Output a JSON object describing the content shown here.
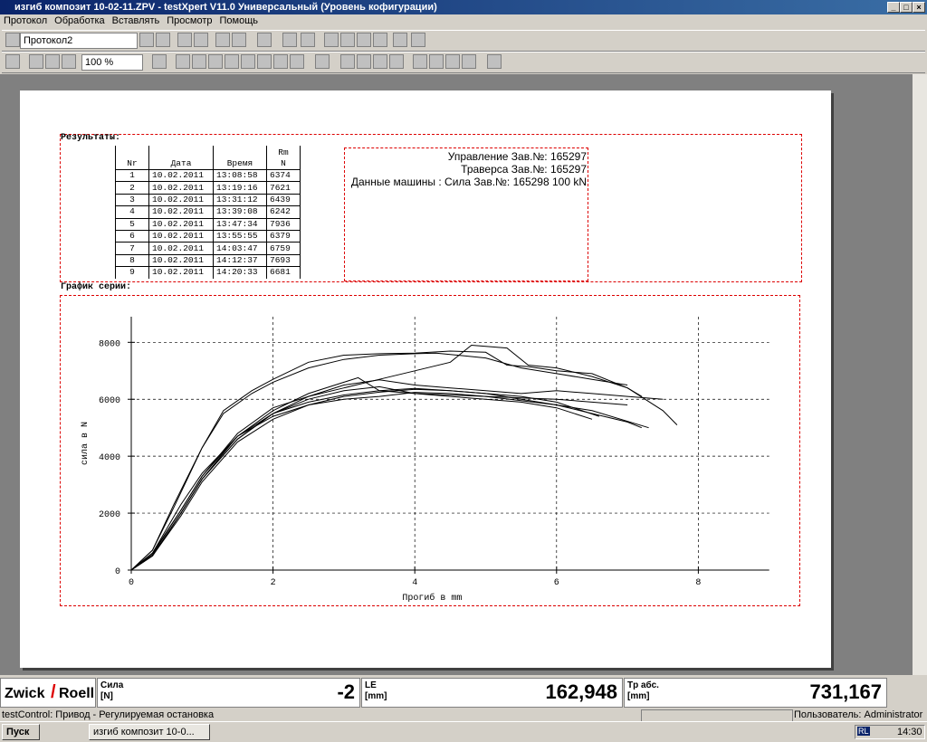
{
  "window": {
    "title": "изгиб композит 10-02-11.ZPV - testXpert V11.0 Универсальный (Уровень кофигурации)"
  },
  "menu": [
    "Протокол",
    "Обработка",
    "Вставлять",
    "Просмотр",
    "Помощь"
  ],
  "toolbar": {
    "protocol": "Протокол2",
    "zoom": "100 %"
  },
  "report": {
    "results_title": "Результаты:",
    "table": {
      "header": [
        "Nr",
        "Дата",
        "Время",
        "Rm"
      ],
      "rm_unit": "N",
      "rows": [
        [
          1,
          "10.02.2011",
          "13:08:58",
          6374
        ],
        [
          2,
          "10.02.2011",
          "13:19:16",
          7621
        ],
        [
          3,
          "10.02.2011",
          "13:31:12",
          6439
        ],
        [
          4,
          "10.02.2011",
          "13:39:08",
          6242
        ],
        [
          5,
          "10.02.2011",
          "13:47:34",
          7936
        ],
        [
          6,
          "10.02.2011",
          "13:55:55",
          6379
        ],
        [
          7,
          "10.02.2011",
          "14:03:47",
          6759
        ],
        [
          8,
          "10.02.2011",
          "14:12:37",
          7693
        ],
        [
          9,
          "10.02.2011",
          "14:20:33",
          6681
        ]
      ]
    },
    "machine": [
      "Управление Зав.№: 165297",
      "Траверса Зав.№: 165297",
      "Данные машины : Сила Зав.№: 165298 100 kN"
    ],
    "series_title": "График серии:"
  },
  "chart_data": {
    "type": "line",
    "x_label": "Прогиб в mm",
    "y_label": "сила в N",
    "xlim": [
      0,
      9
    ],
    "ylim": [
      0,
      8900
    ],
    "xticks": [
      0,
      2,
      4,
      6,
      8
    ],
    "yticks": [
      0,
      2000,
      4000,
      6000,
      8000
    ],
    "grid": true,
    "series": [
      {
        "color": "#000000",
        "x": [
          0,
          0.3,
          0.7,
          1,
          1.5,
          2,
          2.5,
          3,
          3.5,
          4,
          4.5,
          5,
          5.5,
          6,
          6.5,
          7,
          7.2
        ],
        "values": [
          0,
          600,
          2300,
          3400,
          4700,
          5400,
          5800,
          6100,
          6250,
          6350,
          6300,
          6200,
          6000,
          5800,
          5500,
          5200,
          5000
        ]
      },
      {
        "color": "#000000",
        "x": [
          0,
          0.3,
          0.6,
          1,
          1.3,
          1.7,
          2,
          2.5,
          3,
          3.5,
          4,
          4.3,
          4.6,
          5,
          5.5,
          6,
          6.5,
          7
        ],
        "values": [
          0,
          700,
          2200,
          4300,
          5500,
          6200,
          6600,
          7100,
          7400,
          7550,
          7600,
          7620,
          7550,
          7450,
          7100,
          6900,
          6700,
          6500
        ]
      },
      {
        "color": "#000000",
        "x": [
          0,
          0.3,
          0.7,
          1,
          1.5,
          2,
          2.5,
          3,
          3.5,
          4,
          4.5,
          5,
          5.5,
          6,
          6.5
        ],
        "values": [
          0,
          500,
          2000,
          3200,
          4600,
          5500,
          6000,
          6300,
          6440,
          6200,
          6100,
          6000,
          5900,
          5700,
          5300
        ]
      },
      {
        "color": "#000000",
        "x": [
          0,
          0.3,
          0.7,
          1,
          1.5,
          2,
          2.5,
          3,
          3.5,
          4,
          4.5,
          5,
          5.5,
          6,
          6.5,
          7.3
        ],
        "values": [
          0,
          500,
          1900,
          3100,
          4500,
          5300,
          5800,
          6000,
          6100,
          6242,
          6200,
          6100,
          5950,
          5800,
          5600,
          5000
        ]
      },
      {
        "color": "#000000",
        "x": [
          0,
          0.3,
          0.7,
          1,
          1.5,
          2,
          2.5,
          3,
          3.5,
          4,
          4.5,
          4.8,
          5.3,
          5.6,
          6,
          6.5,
          7,
          7.5,
          7.7
        ],
        "values": [
          0,
          600,
          2100,
          3300,
          4800,
          5700,
          6100,
          6400,
          6700,
          7000,
          7300,
          7900,
          7800,
          7200,
          7100,
          6800,
          6400,
          5600,
          5100
        ]
      },
      {
        "color": "#000000",
        "x": [
          0,
          0.3,
          0.7,
          1,
          1.5,
          2,
          2.5,
          3,
          3.5,
          4,
          4.5,
          5,
          5.5,
          6,
          6.6
        ],
        "values": [
          0,
          550,
          2100,
          3300,
          4700,
          5500,
          5900,
          6150,
          6300,
          6379,
          6300,
          6200,
          6100,
          5900,
          5400
        ]
      },
      {
        "color": "#000000",
        "x": [
          0,
          0.3,
          0.7,
          1,
          1.5,
          2,
          2.5,
          3,
          3.2,
          3.5,
          4,
          4.5,
          5,
          5.5,
          6,
          6.5,
          7
        ],
        "values": [
          0,
          500,
          2000,
          3200,
          4700,
          5600,
          6200,
          6600,
          6759,
          6300,
          6200,
          6150,
          6100,
          6050,
          6000,
          5900,
          5800
        ]
      },
      {
        "color": "#000000",
        "x": [
          0,
          0.3,
          0.6,
          1,
          1.3,
          1.7,
          2,
          2.5,
          3,
          3.5,
          4,
          4.5,
          5,
          5.3,
          5.6,
          6,
          6.5,
          7,
          7.2
        ],
        "values": [
          0,
          700,
          2300,
          4300,
          5600,
          6300,
          6700,
          7300,
          7550,
          7600,
          7620,
          7693,
          7650,
          7200,
          7150,
          7000,
          6900,
          6400,
          6100
        ]
      },
      {
        "color": "#000000",
        "x": [
          0,
          0.3,
          0.7,
          1,
          1.5,
          2,
          2.5,
          3,
          3.5,
          4,
          4.5,
          5,
          5.5,
          6,
          6.5,
          7,
          7.5
        ],
        "values": [
          0,
          500,
          2000,
          3200,
          4600,
          5500,
          6100,
          6500,
          6681,
          6500,
          6400,
          6300,
          6200,
          6300,
          6200,
          6100,
          6000
        ]
      }
    ]
  },
  "logo": [
    "Zwick",
    "Roell"
  ],
  "readouts": [
    {
      "label": "Сила",
      "unit": "[N]",
      "value": "-2"
    },
    {
      "label": "LE",
      "unit": "[mm]",
      "value": "162,948"
    },
    {
      "label": "Tp абс.",
      "unit": "[mm]",
      "value": "731,167"
    }
  ],
  "status": {
    "message": "testControl: Привод - Регулируемая остановка",
    "user": "Пользователь: Administrator"
  },
  "taskbar": {
    "start": "Пуск",
    "task": "изгиб композит 10-0...",
    "lang": "RL",
    "clock": "14:30"
  }
}
